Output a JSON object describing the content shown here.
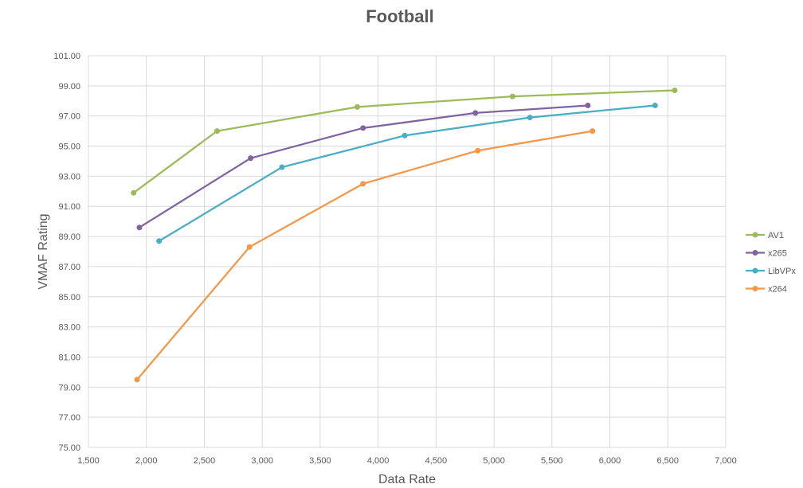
{
  "chart_data": {
    "type": "line",
    "title": "Football",
    "xlabel": "Data Rate",
    "ylabel": "VMAF Rating",
    "xlim": [
      1500,
      7000
    ],
    "ylim": [
      75,
      101
    ],
    "x_ticks": [
      1500,
      2000,
      2500,
      3000,
      3500,
      4000,
      4500,
      5000,
      5500,
      6000,
      6500,
      7000
    ],
    "x_tick_labels": [
      "1,500",
      "2,000",
      "2,500",
      "3,000",
      "3,500",
      "4,000",
      "4,500",
      "5,000",
      "5,500",
      "6,000",
      "6,500",
      "7,000"
    ],
    "y_ticks": [
      75,
      77,
      79,
      81,
      83,
      85,
      87,
      89,
      91,
      93,
      95,
      97,
      99,
      101
    ],
    "y_tick_labels": [
      "75.00",
      "77.00",
      "79.00",
      "81.00",
      "83.00",
      "85.00",
      "87.00",
      "89.00",
      "91.00",
      "93.00",
      "95.00",
      "97.00",
      "99.00",
      "101.00"
    ],
    "grid": true,
    "legend_position": "right",
    "series": [
      {
        "name": "AV1",
        "color": "#9bbb59",
        "points": [
          [
            1890,
            91.9
          ],
          [
            2610,
            96.0
          ],
          [
            3820,
            97.6
          ],
          [
            5160,
            98.3
          ],
          [
            6560,
            98.7
          ]
        ]
      },
      {
        "name": "x265",
        "color": "#8064a2",
        "points": [
          [
            1940,
            89.6
          ],
          [
            2900,
            94.2
          ],
          [
            3870,
            96.2
          ],
          [
            4840,
            97.2
          ],
          [
            5810,
            97.7
          ]
        ]
      },
      {
        "name": "LibVPx",
        "color": "#4bacc6",
        "points": [
          [
            2110,
            88.7
          ],
          [
            3170,
            93.6
          ],
          [
            4230,
            95.7
          ],
          [
            5310,
            96.9
          ],
          [
            6390,
            97.7
          ]
        ]
      },
      {
        "name": "x264",
        "color": "#f79646",
        "points": [
          [
            1920,
            79.5
          ],
          [
            2890,
            88.3
          ],
          [
            3870,
            92.5
          ],
          [
            4860,
            94.7
          ],
          [
            5850,
            96.0
          ]
        ]
      }
    ]
  }
}
